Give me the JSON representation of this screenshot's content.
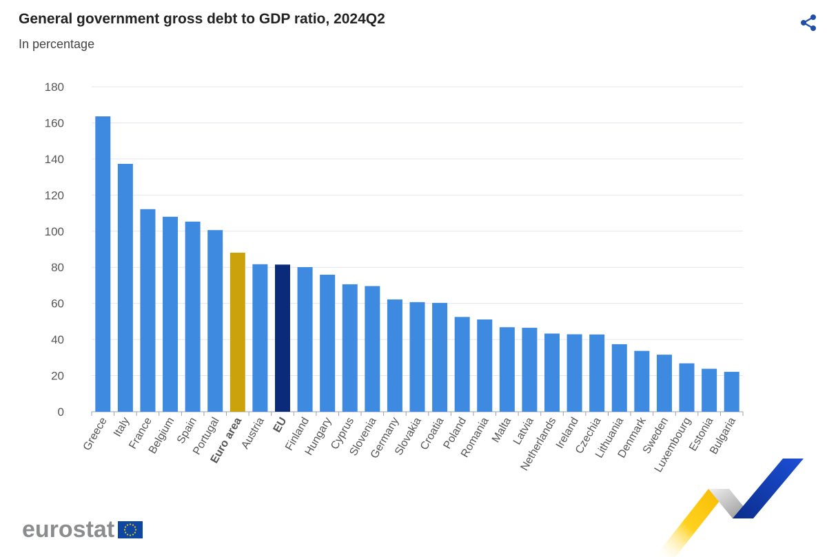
{
  "header": {
    "title": "General government gross debt to GDP ratio, 2024Q2",
    "subtitle": "In percentage",
    "share_icon": "share-icon"
  },
  "branding": {
    "logo_text": "eurostat",
    "flag_icon": "eu-flag-icon",
    "colors": {
      "logo": "#8a8c8e",
      "flag_blue": "#0e47a1",
      "flag_stars": "#ffcc00"
    }
  },
  "chart_data": {
    "type": "bar",
    "title": "General government gross debt to GDP ratio, 2024Q2",
    "subtitle": "In percentage",
    "xlabel": "",
    "ylabel": "",
    "ylim": [
      0,
      180
    ],
    "yticks": [
      0,
      20,
      40,
      60,
      80,
      100,
      120,
      140,
      160,
      180
    ],
    "grid": true,
    "legend": "none",
    "categories": [
      "Greece",
      "Italy",
      "France",
      "Belgium",
      "Spain",
      "Portugal",
      "Euro area",
      "Austria",
      "EU",
      "Finland",
      "Hungary",
      "Cyprus",
      "Slovenia",
      "Germany",
      "Slovakia",
      "Croatia",
      "Poland",
      "Romania",
      "Malta",
      "Latvia",
      "Netherlands",
      "Ireland",
      "Czechia",
      "Lithuania",
      "Denmark",
      "Sweden",
      "Luxembourg",
      "Estonia",
      "Bulgaria"
    ],
    "values": [
      163.6,
      137.3,
      112.2,
      108.0,
      105.3,
      100.6,
      88.1,
      81.7,
      81.5,
      80.1,
      75.9,
      70.6,
      69.6,
      62.2,
      60.7,
      60.3,
      52.5,
      51.1,
      46.8,
      46.5,
      43.3,
      42.9,
      42.8,
      37.4,
      33.7,
      31.6,
      26.8,
      23.8,
      22.1
    ],
    "highlight": {
      "Euro area": "#cca20c",
      "EU": "#0c2a7a"
    },
    "bold_labels": [
      "Euro area",
      "EU"
    ],
    "colors": {
      "default": "#3d8ae0",
      "euro_area": "#cca20c",
      "eu": "#0c2a7a"
    }
  }
}
